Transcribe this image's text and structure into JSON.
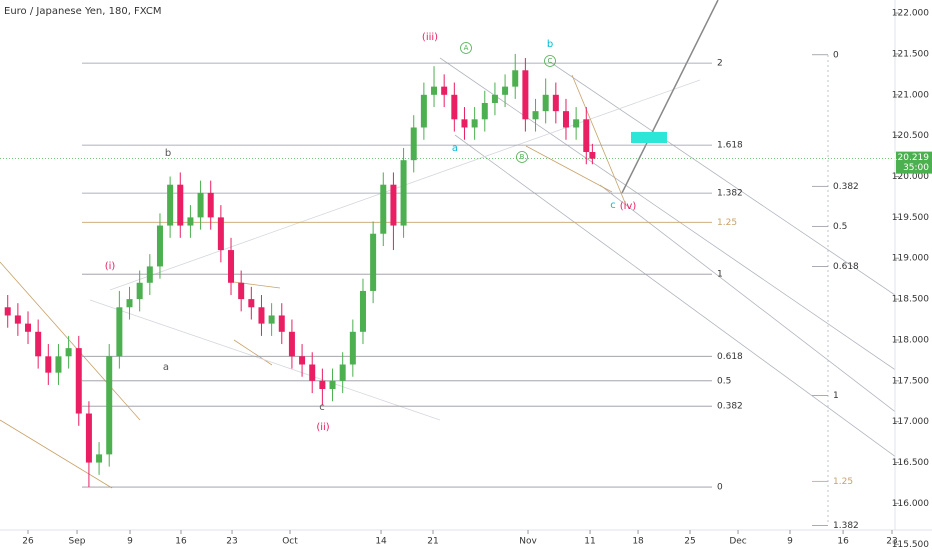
{
  "chart_data": {
    "type": "candlestick",
    "title": "Euro / Japanese Yen, 180, FXCM",
    "x": [
      -2,
      -1,
      0,
      1,
      2,
      3,
      4,
      5,
      6,
      7,
      8,
      9,
      10,
      11,
      12,
      13,
      14,
      15,
      16,
      17,
      18,
      19,
      20,
      21,
      22,
      23,
      24,
      25,
      26,
      27,
      28,
      29,
      30,
      31,
      32,
      33,
      34,
      35,
      36,
      37,
      38,
      39,
      40,
      41,
      42,
      43,
      44,
      45,
      46,
      47,
      48,
      49,
      50,
      51,
      52,
      53,
      54,
      55,
      55.6
    ],
    "open": [
      118.4,
      118.3,
      118.2,
      118.1,
      117.8,
      117.6,
      117.8,
      117.9,
      117.1,
      116.5,
      116.6,
      117.8,
      118.4,
      118.5,
      118.7,
      118.9,
      119.4,
      119.9,
      119.4,
      119.5,
      119.8,
      119.5,
      119.1,
      118.7,
      118.5,
      118.4,
      118.2,
      118.3,
      118.1,
      117.8,
      117.7,
      117.5,
      117.4,
      117.5,
      117.7,
      118.1,
      118.6,
      119.3,
      119.9,
      119.4,
      120.2,
      120.6,
      121.0,
      121.1,
      121.0,
      120.7,
      120.6,
      120.7,
      120.9,
      121.0,
      121.1,
      121.3,
      120.7,
      120.8,
      121.0,
      120.8,
      120.6,
      120.7,
      120.3
    ],
    "high": [
      118.55,
      118.45,
      118.35,
      118.25,
      117.95,
      117.95,
      118.05,
      118.05,
      117.25,
      116.75,
      117.95,
      118.6,
      118.65,
      118.85,
      119.05,
      119.55,
      120.0,
      120.05,
      119.65,
      119.95,
      119.95,
      119.65,
      119.25,
      118.85,
      118.65,
      118.55,
      118.45,
      118.45,
      118.25,
      117.95,
      117.85,
      117.65,
      117.65,
      117.85,
      118.25,
      118.75,
      119.45,
      120.05,
      120.05,
      120.35,
      120.75,
      121.15,
      121.35,
      121.25,
      121.15,
      120.85,
      120.85,
      121.05,
      121.15,
      121.25,
      121.5,
      121.45,
      120.95,
      121.2,
      121.15,
      120.95,
      120.85,
      120.85,
      120.4
    ],
    "low": [
      118.15,
      118.05,
      117.95,
      117.65,
      117.45,
      117.45,
      117.65,
      116.95,
      116.2,
      116.35,
      116.45,
      117.65,
      118.25,
      118.35,
      118.55,
      118.75,
      119.25,
      119.25,
      119.25,
      119.35,
      119.35,
      118.95,
      118.55,
      118.35,
      118.25,
      118.05,
      118.05,
      117.95,
      117.65,
      117.55,
      117.35,
      117.2,
      117.25,
      117.35,
      117.55,
      117.95,
      118.45,
      119.15,
      119.1,
      119.25,
      120.05,
      120.45,
      120.85,
      120.85,
      120.55,
      120.45,
      120.45,
      120.55,
      120.75,
      120.85,
      120.95,
      120.55,
      120.55,
      120.65,
      120.65,
      120.45,
      120.45,
      120.15,
      120.15
    ],
    "close": [
      118.3,
      118.2,
      118.1,
      117.8,
      117.6,
      117.8,
      117.9,
      117.1,
      116.5,
      116.6,
      117.8,
      118.4,
      118.5,
      118.7,
      118.9,
      119.4,
      119.9,
      119.4,
      119.5,
      119.8,
      119.5,
      119.1,
      118.7,
      118.5,
      118.4,
      118.2,
      118.3,
      118.1,
      117.8,
      117.7,
      117.5,
      117.4,
      117.5,
      117.7,
      118.1,
      118.6,
      119.3,
      119.9,
      119.4,
      120.2,
      120.6,
      121.0,
      121.1,
      121.0,
      120.7,
      120.6,
      120.7,
      120.9,
      121.0,
      121.1,
      121.3,
      120.7,
      120.8,
      121.0,
      120.8,
      120.6,
      120.7,
      120.3,
      120.219
    ],
    "up_color": "#4caf50",
    "down_color": "#e91e63",
    "xlim": [
      -2.76,
      89.06
    ],
    "xticks": [
      {
        "value": 0,
        "label": "26"
      },
      {
        "value": 4.83,
        "label": "Sep"
      },
      {
        "value": 10.05,
        "label": "9"
      },
      {
        "value": 15.07,
        "label": "16"
      },
      {
        "value": 20.1,
        "label": "23"
      },
      {
        "value": 25.81,
        "label": "Oct"
      },
      {
        "value": 34.78,
        "label": "14"
      },
      {
        "value": 39.9,
        "label": "21"
      },
      {
        "value": 49.26,
        "label": "Nov"
      },
      {
        "value": 55.37,
        "label": "11"
      },
      {
        "value": 60.1,
        "label": "18"
      },
      {
        "value": 65.22,
        "label": "25"
      },
      {
        "value": 69.95,
        "label": "Dec"
      },
      {
        "value": 75.07,
        "label": "9"
      },
      {
        "value": 80.3,
        "label": "16"
      },
      {
        "value": 85.12,
        "label": "23"
      }
    ],
    "ylim": [
      115.43,
      122.16
    ],
    "yticks": [
      {
        "value": 122,
        "label": "122.000"
      },
      {
        "value": 121.5,
        "label": "121.500"
      },
      {
        "value": 121,
        "label": "121.000"
      },
      {
        "value": 120.5,
        "label": "120.500"
      },
      {
        "value": 120,
        "label": "120.000"
      },
      {
        "value": 119.5,
        "label": "119.500"
      },
      {
        "value": 119,
        "label": "119.000"
      },
      {
        "value": 118.5,
        "label": "118.500"
      },
      {
        "value": 118,
        "label": "118.000"
      },
      {
        "value": 117.5,
        "label": "117.500"
      },
      {
        "value": 117,
        "label": "117.000"
      },
      {
        "value": 116.5,
        "label": "116.500"
      },
      {
        "value": 116,
        "label": "116.000"
      },
      {
        "value": 115.5,
        "label": "115.500"
      }
    ],
    "last_price": 120.219,
    "countdown": "35:00",
    "fib_main": [
      {
        "level": 2,
        "price": 121.388
      },
      {
        "level": 1.618,
        "price": 120.384
      },
      {
        "level": 1.382,
        "price": 119.797
      },
      {
        "level": 1.25,
        "price": 119.44
      },
      {
        "level": 1,
        "price": 118.805
      },
      {
        "level": 0.618,
        "price": 117.8
      },
      {
        "level": 0.5,
        "price": 117.5
      },
      {
        "level": 0.382,
        "price": 117.19
      },
      {
        "level": 0,
        "price": 116.2
      }
    ],
    "fib_right": [
      {
        "level": 0,
        "price": 121.49
      },
      {
        "level": 0.382,
        "price": 119.88
      },
      {
        "level": 0.5,
        "price": 119.39
      },
      {
        "level": 0.618,
        "price": 118.9
      },
      {
        "level": 1,
        "price": 117.32
      },
      {
        "level": 1.25,
        "price": 116.27
      },
      {
        "level": 1.382,
        "price": 115.73
      }
    ],
    "annotations": [
      "(iii)",
      "A",
      "b",
      "C",
      "a",
      "B",
      "b",
      "(i)",
      "a",
      "c",
      "(ii)",
      "c",
      "(iv)"
    ]
  }
}
